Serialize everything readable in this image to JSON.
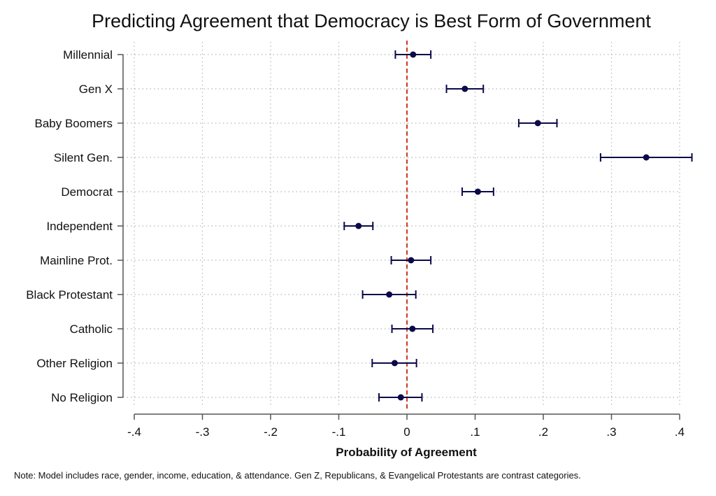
{
  "chart_data": {
    "type": "scatter",
    "subtype": "coefficient-plot",
    "title": "Predicting Agreement that Democracy is Best Form of Government",
    "xlabel": "Probability of Agreement",
    "ylabel": "",
    "xlim": [
      -0.4,
      0.4
    ],
    "xticks": [
      -0.4,
      -0.3,
      -0.2,
      -0.1,
      0,
      0.1,
      0.2,
      0.3,
      0.4
    ],
    "xtick_labels": [
      "-.4",
      "-.3",
      "-.2",
      "-.1",
      "0",
      ".1",
      ".2",
      ".3",
      ".4"
    ],
    "reference_line": {
      "x": 0,
      "style": "dashed",
      "color": "#d0402b"
    },
    "grid": true,
    "marker_color": "#0a0a4a",
    "categories": [
      "Millennial",
      "Gen X",
      "Baby Boomers",
      "Silent Gen.",
      "Democrat",
      "Independent",
      "Mainline Prot.",
      "Black Protestant",
      "Catholic",
      "Other Religion",
      "No Religion"
    ],
    "estimates": [
      0.009,
      0.085,
      0.192,
      0.351,
      0.104,
      -0.071,
      0.006,
      -0.026,
      0.008,
      -0.018,
      -0.009
    ],
    "ci_low": [
      -0.017,
      0.058,
      0.164,
      0.284,
      0.081,
      -0.092,
      -0.023,
      -0.065,
      -0.022,
      -0.051,
      -0.041
    ],
    "ci_high": [
      0.035,
      0.112,
      0.22,
      0.418,
      0.127,
      -0.05,
      0.035,
      0.013,
      0.038,
      0.014,
      0.022
    ]
  },
  "note": "Note: Model includes race, gender, income, education, & attendance. Gen Z, Republicans, & Evangelical Protestants are contrast categories."
}
